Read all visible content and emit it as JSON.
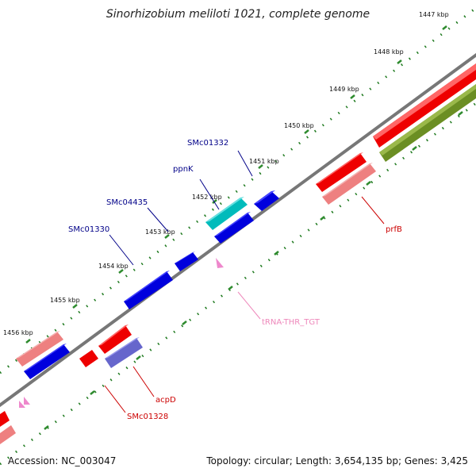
{
  "title": "Sinorhizobium meliloti 1021, complete genome",
  "footer": {
    "accession": "Accession: NC_003047",
    "stats": "Topology: circular; Length: 3,654,135 bp; Genes: 3,425"
  },
  "ticks": [
    "1447 kbp",
    "1448 kbp",
    "1449 kbp",
    "1450 kbp",
    "1451 kbp",
    "1452 kbp",
    "1453 kbp",
    "1454 kbp",
    "1455 kbp",
    "1456 kbp"
  ],
  "genes": {
    "smc01332": "SMc01332",
    "ppnk": "ppnK",
    "smc04435": "SMc04435",
    "smc01330": "SMc01330",
    "prfb": "prfB",
    "trna": "tRNA-THR_TGT",
    "acpd": "acpD",
    "smc01328": "SMc01328"
  },
  "colors": {
    "backbone": "#777777",
    "tick": "#2e8b2e",
    "forward_cds": "#0000dd",
    "reverse_cds": "#ee0000",
    "rna": "#ee99cc",
    "label_fwd": "#000088",
    "label_rev": "#cc0000",
    "label_rna": "#ee88bb"
  }
}
